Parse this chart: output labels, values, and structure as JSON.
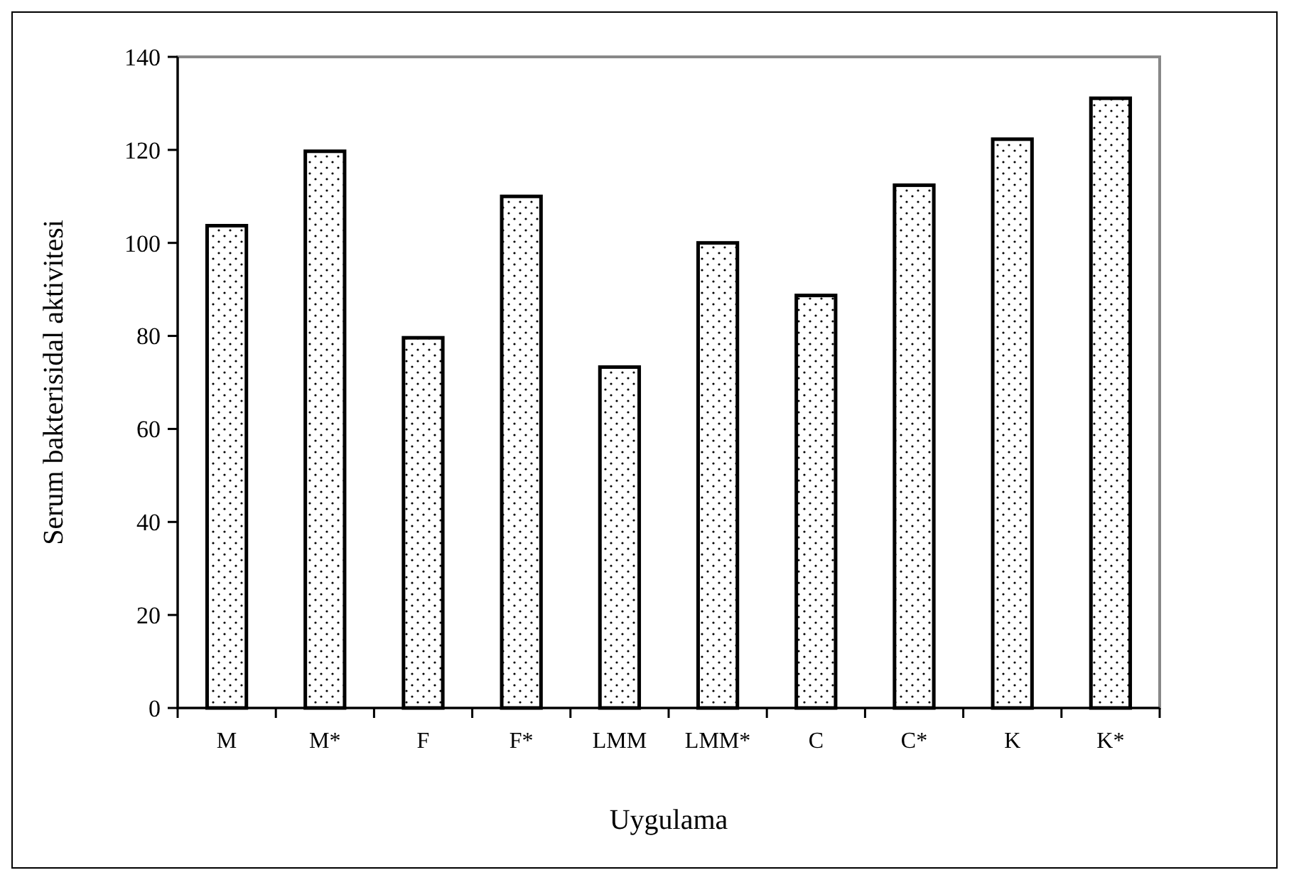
{
  "chart_data": {
    "type": "bar",
    "xlabel": "Uygulama",
    "ylabel": "Serum bakterisidal aktivitesi",
    "categories": [
      "M",
      "M*",
      "F",
      "F*",
      "LMM",
      "LMM*",
      "C",
      "C*",
      "K",
      "K*"
    ],
    "values": [
      103.7,
      119.7,
      79.6,
      110.0,
      73.3,
      100.0,
      88.7,
      112.4,
      122.3,
      131.1
    ],
    "color": "#000000",
    "ylim": [
      0,
      140
    ],
    "yticks": [
      0,
      20,
      40,
      60,
      80,
      100,
      120,
      140
    ],
    "grid": false
  }
}
